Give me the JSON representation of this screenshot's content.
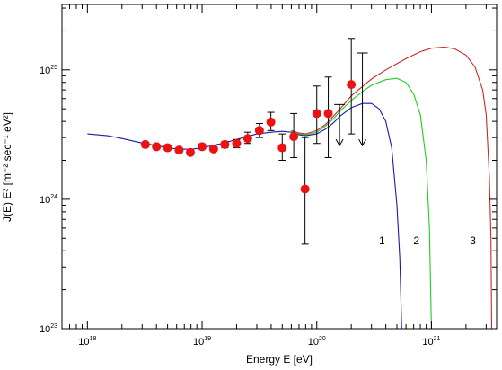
{
  "chart_data": {
    "type": "scatter",
    "title": "",
    "xlabel": "Energy  E [eV]",
    "ylabel": "J(E) E³  [m⁻² sec⁻¹ eV²]",
    "xscale": "log",
    "yscale": "log",
    "xlim": [
      6e+17,
      3.7e+21
    ],
    "ylim": [
      1e+23,
      3.2e+25
    ],
    "x_ticks": [
      {
        "value": 1e+18,
        "base": "10",
        "exp": "18"
      },
      {
        "value": 1e+19,
        "base": "10",
        "exp": "19"
      },
      {
        "value": 1e+20,
        "base": "10",
        "exp": "20"
      },
      {
        "value": 1e+21,
        "base": "10",
        "exp": "21"
      }
    ],
    "y_ticks": [
      {
        "value": 1e+23,
        "base": "10",
        "exp": "23"
      },
      {
        "value": 1e+24,
        "base": "10",
        "exp": "24"
      },
      {
        "value": 1e+25,
        "base": "10",
        "exp": "25"
      }
    ],
    "grid": false,
    "data_points": [
      {
        "x": 3.2e+18,
        "y": 2.65e+24,
        "lo": 2.55e+24,
        "hi": 2.75e+24
      },
      {
        "x": 4e+18,
        "y": 2.55e+24,
        "lo": 2.45e+24,
        "hi": 2.65e+24
      },
      {
        "x": 5e+18,
        "y": 2.5e+24,
        "lo": 2.4e+24,
        "hi": 2.6e+24
      },
      {
        "x": 6.3e+18,
        "y": 2.4e+24,
        "lo": 2.3e+24,
        "hi": 2.5e+24
      },
      {
        "x": 7.9e+18,
        "y": 2.3e+24,
        "lo": 2.2e+24,
        "hi": 2.4e+24
      },
      {
        "x": 1e+19,
        "y": 2.55e+24,
        "lo": 2.45e+24,
        "hi": 2.65e+24
      },
      {
        "x": 1.26e+19,
        "y": 2.45e+24,
        "lo": 2.35e+24,
        "hi": 2.55e+24
      },
      {
        "x": 1.58e+19,
        "y": 2.65e+24,
        "lo": 2.5e+24,
        "hi": 2.8e+24
      },
      {
        "x": 2e+19,
        "y": 2.7e+24,
        "lo": 2.5e+24,
        "hi": 2.9e+24
      },
      {
        "x": 2.5e+19,
        "y": 2.95e+24,
        "lo": 2.7e+24,
        "hi": 3.3e+24
      },
      {
        "x": 3.16e+19,
        "y": 3.4e+24,
        "lo": 3e+24,
        "hi": 3.85e+24
      },
      {
        "x": 3.98e+19,
        "y": 3.95e+24,
        "lo": 3.4e+24,
        "hi": 4.7e+24
      },
      {
        "x": 5e+19,
        "y": 2.5e+24,
        "lo": 2e+24,
        "hi": 3.2e+24
      },
      {
        "x": 6.3e+19,
        "y": 3.05e+24,
        "lo": 2.1e+24,
        "hi": 4.6e+24
      },
      {
        "x": 7.9e+19,
        "y": 1.2e+24,
        "lo": 4.5e+23,
        "hi": 3e+24
      },
      {
        "x": 1e+20,
        "y": 4.6e+24,
        "lo": 2.7e+24,
        "hi": 7.5e+24
      },
      {
        "x": 1.26e+20,
        "y": 4.6e+24,
        "lo": 2.1e+24,
        "hi": 8.8e+24
      },
      {
        "x": 2e+20,
        "y": 7.7e+24,
        "lo": 3.2e+24,
        "hi": 1.75e+25
      }
    ],
    "upper_limits": [
      {
        "x": 1.58e+20,
        "y": 5.4e+24,
        "to": 2.6e+24
      },
      {
        "x": 2.5e+20,
        "y": 1.35e+25,
        "to": 2.6e+24
      }
    ],
    "model_curves": [
      {
        "label": "1",
        "color": "#1a1aa8",
        "points": [
          [
            1e+18,
            3.2e+24
          ],
          [
            1.5e+18,
            3.1e+24
          ],
          [
            2e+18,
            2.95e+24
          ],
          [
            3e+18,
            2.72e+24
          ],
          [
            4e+18,
            2.6e+24
          ],
          [
            5e+18,
            2.5e+24
          ],
          [
            6e+18,
            2.45e+24
          ],
          [
            8e+18,
            2.43e+24
          ],
          [
            1e+19,
            2.5e+24
          ],
          [
            1.5e+19,
            2.7e+24
          ],
          [
            2e+19,
            2.9e+24
          ],
          [
            3e+19,
            3.2e+24
          ],
          [
            4e+19,
            3.3e+24
          ],
          [
            5e+19,
            3.35e+24
          ],
          [
            6e+19,
            3.3e+24
          ],
          [
            7e+19,
            3.15e+24
          ],
          [
            8e+19,
            3.1e+24
          ],
          [
            1e+20,
            3.2e+24
          ],
          [
            1.2e+20,
            3.5e+24
          ],
          [
            1.4e+20,
            3.9e+24
          ],
          [
            1.6e+20,
            4.4e+24
          ],
          [
            2e+20,
            5.1e+24
          ],
          [
            2.5e+20,
            5.5e+24
          ],
          [
            3e+20,
            5.5e+24
          ],
          [
            3.5e+20,
            5e+24
          ],
          [
            4e+20,
            4e+24
          ],
          [
            4.5e+20,
            2.5e+24
          ],
          [
            5e+20,
            9e+23
          ],
          [
            5.3e+20,
            3.5e+23
          ],
          [
            5.5e+20,
            1e+23
          ]
        ]
      },
      {
        "label": "2",
        "color": "#22cc22",
        "points": [
          [
            6e+19,
            3.35e+24
          ],
          [
            7e+19,
            3.2e+24
          ],
          [
            8e+19,
            3.15e+24
          ],
          [
            1e+20,
            3.3e+24
          ],
          [
            1.2e+20,
            3.7e+24
          ],
          [
            1.4e+20,
            4.2e+24
          ],
          [
            1.6e+20,
            4.8e+24
          ],
          [
            2e+20,
            5.8e+24
          ],
          [
            2.5e+20,
            6.8e+24
          ],
          [
            3e+20,
            7.6e+24
          ],
          [
            4e+20,
            8.4e+24
          ],
          [
            5e+20,
            8.6e+24
          ],
          [
            6e+20,
            8e+24
          ],
          [
            7e+20,
            6.5e+24
          ],
          [
            8e+20,
            4.5e+24
          ],
          [
            9e+20,
            2e+24
          ],
          [
            9.6e+20,
            6e+23
          ],
          [
            1e+21,
            1e+23
          ]
        ]
      },
      {
        "label": "3",
        "color": "#c82828",
        "points": [
          [
            6e+19,
            3.4e+24
          ],
          [
            7e+19,
            3.25e+24
          ],
          [
            8e+19,
            3.2e+24
          ],
          [
            1e+20,
            3.4e+24
          ],
          [
            1.2e+20,
            3.8e+24
          ],
          [
            1.4e+20,
            4.4e+24
          ],
          [
            1.6e+20,
            5e+24
          ],
          [
            2e+20,
            6.3e+24
          ],
          [
            3e+20,
            8.5e+24
          ],
          [
            4e+20,
            1e+25
          ],
          [
            6e+20,
            1.22e+25
          ],
          [
            8e+20,
            1.38e+25
          ],
          [
            1e+21,
            1.47e+25
          ],
          [
            1.3e+21,
            1.5e+25
          ],
          [
            1.6e+21,
            1.45e+25
          ],
          [
            2e+21,
            1.3e+25
          ],
          [
            2.4e+21,
            1.05e+25
          ],
          [
            2.8e+21,
            7e+24
          ],
          [
            3e+21,
            4.5e+24
          ],
          [
            3.2e+21,
            1.5e+24
          ],
          [
            3.3e+21,
            5e+23
          ],
          [
            3.35e+21,
            1e+23
          ]
        ]
      }
    ],
    "curve_labels": [
      {
        "text": "1",
        "x": 3.7e+20,
        "y": 4.5e+23
      },
      {
        "text": "2",
        "x": 7.4e+20,
        "y": 4.5e+23
      },
      {
        "text": "3",
        "x": 2.3e+21,
        "y": 4.5e+23
      }
    ],
    "colors": {
      "points": "#ee1111",
      "errorbars": "#000000",
      "axes": "#000000"
    }
  }
}
